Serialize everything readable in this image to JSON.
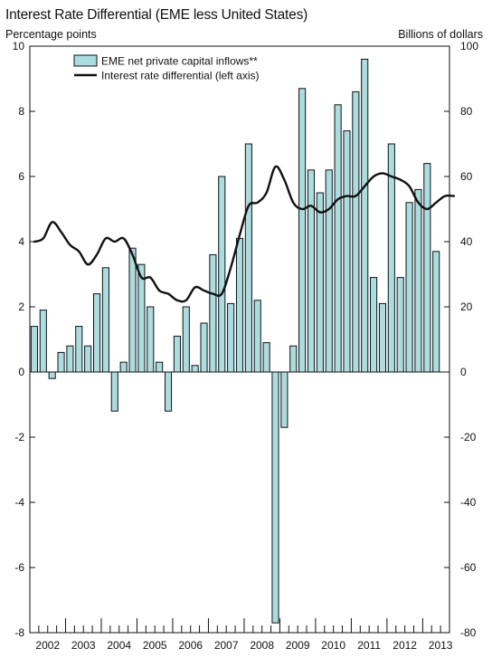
{
  "chart_data": {
    "type": "bar+line",
    "title": "Interest Rate Differential (EME less United States)",
    "left_axis_label": "Percentage points",
    "right_axis_label": "Billions of dollars",
    "left_ylim": [
      -8,
      10
    ],
    "right_ylim": [
      -80,
      100
    ],
    "left_ticks": [
      -8,
      -6,
      -4,
      -2,
      0,
      2,
      4,
      6,
      8,
      10
    ],
    "right_ticks": [
      -80,
      -60,
      -40,
      -20,
      0,
      20,
      40,
      60,
      80,
      100
    ],
    "x_start": 2002.0,
    "x_end": 2013.75,
    "years": [
      "2002",
      "2003",
      "2004",
      "2005",
      "2006",
      "2007",
      "2008",
      "2009",
      "2010",
      "2011",
      "2012",
      "2013"
    ],
    "legend": {
      "bars_label": "EME net private capital inflows**",
      "line_label": "Interest rate differential (left axis)"
    },
    "bars": {
      "name": "EME net private capital inflows**",
      "axis": "right",
      "unit": "Billions of dollars",
      "color": "#a9dde0",
      "x": [
        2002.0,
        2002.25,
        2002.5,
        2002.75,
        2003.0,
        2003.25,
        2003.5,
        2003.75,
        2004.0,
        2004.25,
        2004.5,
        2004.75,
        2005.0,
        2005.25,
        2005.5,
        2005.75,
        2006.0,
        2006.25,
        2006.5,
        2006.75,
        2007.0,
        2007.25,
        2007.5,
        2007.75,
        2008.0,
        2008.25,
        2008.5,
        2008.75,
        2009.0,
        2009.25,
        2009.5,
        2009.75,
        2010.0,
        2010.25,
        2010.5,
        2010.75,
        2011.0,
        2011.25,
        2011.5,
        2011.75,
        2012.0,
        2012.25,
        2012.5,
        2012.75,
        2013.0,
        2013.25,
        2013.5
      ],
      "values": [
        14,
        19,
        -2,
        6,
        8,
        14,
        8,
        24,
        32,
        -12,
        3,
        38,
        33,
        20,
        3,
        -12,
        11,
        20,
        2,
        15,
        36,
        60,
        21,
        41,
        70,
        22,
        9,
        -77,
        -17,
        8,
        87,
        62,
        55,
        62,
        82,
        74,
        86,
        96,
        29,
        21,
        70,
        29,
        52,
        56,
        64,
        37,
        0
      ]
    },
    "line": {
      "name": "Interest rate differential (left axis)",
      "axis": "left",
      "unit": "Percentage points",
      "color": "#111111",
      "x": [
        2002.0,
        2002.25,
        2002.5,
        2002.75,
        2003.0,
        2003.25,
        2003.5,
        2003.75,
        2004.0,
        2004.25,
        2004.5,
        2004.75,
        2005.0,
        2005.25,
        2005.5,
        2005.75,
        2006.0,
        2006.25,
        2006.5,
        2006.75,
        2007.0,
        2007.25,
        2007.5,
        2007.75,
        2008.0,
        2008.25,
        2008.5,
        2008.75,
        2009.0,
        2009.25,
        2009.5,
        2009.75,
        2010.0,
        2010.25,
        2010.5,
        2010.75,
        2011.0,
        2011.25,
        2011.5,
        2011.75,
        2012.0,
        2012.25,
        2012.5,
        2012.75,
        2013.0,
        2013.25,
        2013.5,
        2013.75
      ],
      "values": [
        4.0,
        4.1,
        4.6,
        4.3,
        3.9,
        3.7,
        3.3,
        3.6,
        4.1,
        4.0,
        4.1,
        3.6,
        2.9,
        2.9,
        2.5,
        2.4,
        2.2,
        2.2,
        2.6,
        2.5,
        2.4,
        2.4,
        3.2,
        4.2,
        5.1,
        5.2,
        5.5,
        6.3,
        5.9,
        5.2,
        5.0,
        5.1,
        4.9,
        5.0,
        5.3,
        5.4,
        5.4,
        5.7,
        6.0,
        6.1,
        6.0,
        5.9,
        5.7,
        5.2,
        5.0,
        5.2,
        5.4,
        5.4
      ]
    }
  }
}
